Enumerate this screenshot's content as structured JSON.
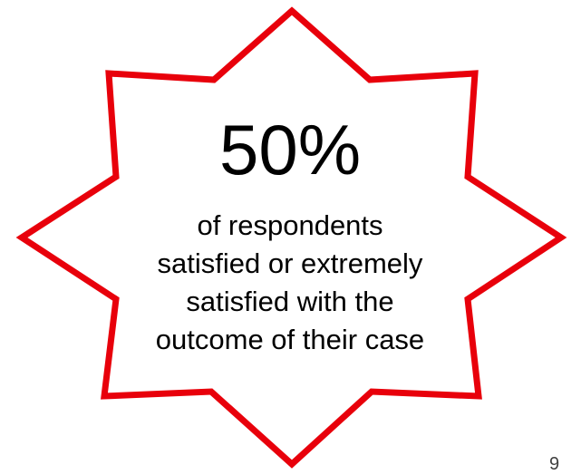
{
  "callout": {
    "value": "50%",
    "description_lines": [
      "of respondents",
      "satisfied or extremely",
      "satisfied with the",
      "outcome of their case"
    ],
    "outline_color": "#e8000b",
    "fill_color": "#ffffff"
  },
  "slide_number": "9"
}
